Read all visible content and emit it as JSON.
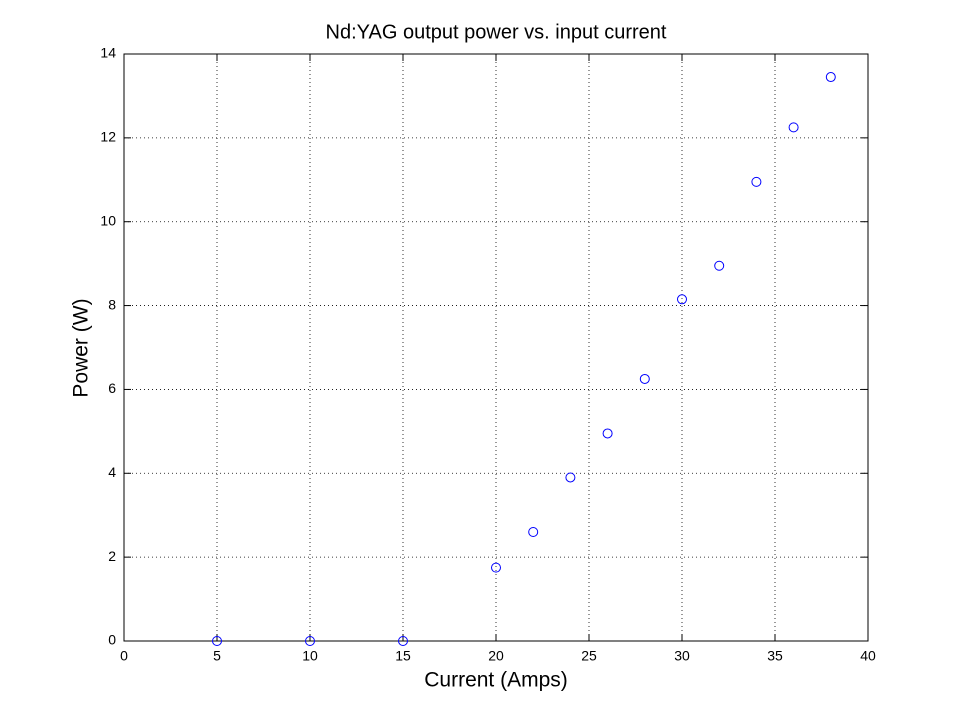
{
  "chart_data": {
    "type": "scatter",
    "title": "Nd:YAG output power vs. input current",
    "x_label": "Current (Amps)",
    "y_label": "Power (W)",
    "x": [
      5,
      10,
      15,
      20,
      22,
      24,
      26,
      28,
      30,
      32,
      34,
      36,
      38
    ],
    "values": [
      0,
      0,
      0,
      1.75,
      2.6,
      3.9,
      4.95,
      6.25,
      8.15,
      8.95,
      10.95,
      12.25,
      13.45
    ],
    "color": "#0000ff",
    "xlim": [
      0,
      40
    ],
    "xticks": [
      0,
      5,
      10,
      15,
      20,
      25,
      30,
      35,
      40
    ],
    "ylim": [
      0,
      14
    ],
    "yticks": [
      0,
      2,
      4,
      6,
      8,
      10,
      12,
      14
    ],
    "grid": true
  }
}
